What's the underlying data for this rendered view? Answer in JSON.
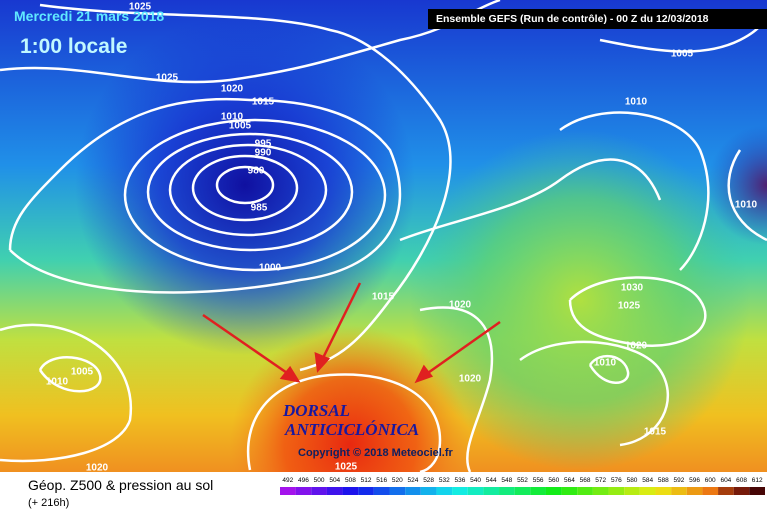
{
  "header": {
    "date": "Mercredi 21 mars 2018",
    "time": "1:00 locale",
    "model": "Ensemble GEFS  (Run de contrôle)  -  00 Z du 12/03/2018"
  },
  "isobars": [
    "1025",
    "1025",
    "1020",
    "1015",
    "1010",
    "1005",
    "995",
    "990",
    "980",
    "985",
    "1000",
    "1015",
    "1020",
    "1005",
    "1010",
    "1010",
    "1030",
    "1025",
    "1020",
    "1010",
    "1020",
    "1015",
    "1005",
    "1010",
    "1020",
    "1025"
  ],
  "annotation": [
    "DORSAL",
    "ANTICICLÓNICA"
  ],
  "copyright": "Copyright © 2018 Meteociel.fr",
  "legend": {
    "title": "Géop. Z500 & pression au sol",
    "subtitle": "(+ 216h)",
    "scale": [
      492,
      496,
      500,
      504,
      508,
      512,
      516,
      520,
      524,
      528,
      532,
      536,
      540,
      544,
      548,
      552,
      556,
      560,
      564,
      568,
      572,
      576,
      580,
      584,
      588,
      592,
      596,
      600,
      604,
      608,
      612
    ]
  }
}
